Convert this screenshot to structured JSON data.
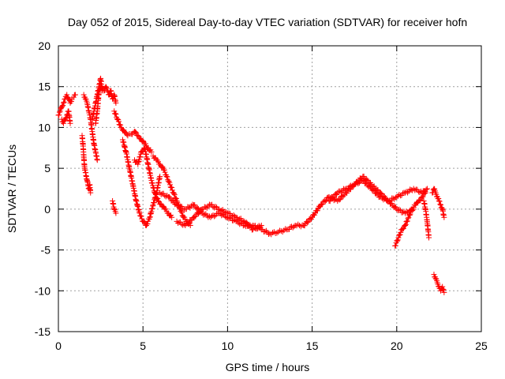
{
  "chart_data": {
    "type": "scatter",
    "title": "Day 052 of 2015, Sidereal Day-to-day VTEC variation (SDTVAR) for receiver hofn",
    "xlabel": "GPS time / hours",
    "ylabel": "SDTVAR / TECUs",
    "xlim": [
      0,
      25
    ],
    "ylim": [
      -15,
      20
    ],
    "xticks": [
      0,
      5,
      10,
      15,
      20,
      25
    ],
    "yticks": [
      -15,
      -10,
      -5,
      0,
      5,
      10,
      15,
      20
    ],
    "grid": true,
    "marker": "+",
    "color": "#ff0000",
    "series": [
      {
        "name": "SDTVAR",
        "segments": [
          {
            "x": [
              0.0,
              0.1,
              0.2,
              0.3,
              0.4,
              0.5,
              0.6,
              0.7,
              0.8,
              0.9,
              1.0
            ],
            "y": [
              11.5,
              12.0,
              12.5,
              13.0,
              13.5,
              14.0,
              13.5,
              13.0,
              13.5,
              13.7,
              14.0
            ]
          },
          {
            "x": [
              0.2,
              0.3,
              0.4,
              0.5,
              0.6,
              0.7
            ],
            "y": [
              11.0,
              10.5,
              11.0,
              11.5,
              12.0,
              10.5
            ]
          },
          {
            "x": [
              1.4,
              1.45,
              1.5,
              1.55,
              1.6,
              1.65,
              1.7,
              1.75,
              1.8,
              1.85,
              1.9
            ],
            "y": [
              9.0,
              8.0,
              6.5,
              5.0,
              4.5,
              4.0,
              3.5,
              3.0,
              2.5,
              3.0,
              2.0
            ]
          },
          {
            "x": [
              1.5,
              1.6,
              1.7,
              1.8,
              1.9,
              2.0,
              2.1,
              2.2,
              2.3
            ],
            "y": [
              14.0,
              13.5,
              13.0,
              12.0,
              11.0,
              9.5,
              8.0,
              7.0,
              6.0
            ]
          },
          {
            "x": [
              2.0,
              2.1,
              2.2,
              2.3,
              2.4,
              2.5,
              2.6
            ],
            "y": [
              11.0,
              12.0,
              13.0,
              14.0,
              15.0,
              16.0,
              14.5
            ]
          },
          {
            "x": [
              2.2,
              2.3,
              2.4,
              2.5,
              2.6,
              2.7,
              2.8,
              2.9,
              3.0,
              3.1,
              3.2,
              3.3,
              3.4
            ],
            "y": [
              10.5,
              12.0,
              14.5,
              15.0,
              14.8,
              14.5,
              15.0,
              14.5,
              14.0,
              14.5,
              13.5,
              14.0,
              13.0
            ]
          },
          {
            "x": [
              3.2,
              3.3,
              3.4
            ],
            "y": [
              1.0,
              0.0,
              -0.5
            ]
          },
          {
            "x": [
              3.3,
              3.5,
              3.7,
              3.9,
              4.1,
              4.3,
              4.5,
              4.7,
              4.9,
              5.1,
              5.3,
              5.5
            ],
            "y": [
              12.0,
              11.0,
              10.0,
              9.5,
              9.0,
              9.2,
              9.5,
              9.0,
              8.5,
              8.0,
              7.5,
              7.0
            ]
          },
          {
            "x": [
              3.8,
              4.0,
              4.2,
              4.4,
              4.6,
              4.8,
              5.0,
              5.2,
              5.4,
              5.6,
              5.8,
              6.0
            ],
            "y": [
              8.5,
              7.0,
              5.0,
              3.0,
              1.0,
              -0.5,
              -1.5,
              -2.0,
              -1.0,
              0.5,
              2.0,
              4.0
            ]
          },
          {
            "x": [
              4.5,
              4.7,
              4.9,
              5.1,
              5.3,
              5.5,
              5.7,
              5.9,
              6.1,
              6.3,
              6.5,
              6.7
            ],
            "y": [
              6.0,
              5.5,
              7.0,
              7.5,
              5.5,
              3.5,
              2.0,
              1.0,
              0.5,
              0.0,
              -0.5,
              -1.0
            ]
          },
          {
            "x": [
              5.6,
              5.8,
              6.0,
              6.2,
              6.4,
              6.6,
              6.8,
              7.0,
              7.2,
              7.4,
              7.6,
              7.8
            ],
            "y": [
              6.5,
              6.0,
              5.5,
              5.0,
              4.0,
              3.0,
              2.0,
              1.0,
              0.0,
              -1.0,
              -1.5,
              -2.0
            ]
          },
          {
            "x": [
              6.0,
              6.5,
              7.0,
              7.5,
              8.0,
              8.5,
              9.0,
              9.5,
              10.0,
              10.5,
              11.0,
              11.5,
              12.0,
              12.5,
              13.0,
              13.5,
              14.0,
              14.5
            ],
            "y": [
              2.0,
              1.5,
              0.5,
              0.0,
              0.5,
              -0.5,
              -1.0,
              -0.5,
              -1.0,
              -1.5,
              -2.0,
              -2.0,
              -2.5,
              -3.0,
              -2.8,
              -2.5,
              -2.0,
              -2.0
            ]
          },
          {
            "x": [
              7.0,
              7.5,
              8.0,
              8.5,
              9.0,
              9.5,
              10.0,
              10.5,
              11.0,
              11.5,
              12.0
            ],
            "y": [
              -1.5,
              -2.0,
              -1.0,
              0.0,
              0.5,
              0.0,
              -0.5,
              -1.0,
              -1.5,
              -2.5,
              -2.0
            ]
          },
          {
            "x": [
              14.5,
              15.0,
              15.5,
              16.0,
              16.5,
              17.0,
              17.5,
              18.0,
              18.5,
              19.0,
              19.5,
              20.0,
              20.5,
              21.0,
              21.5,
              21.8
            ],
            "y": [
              -2.0,
              -1.0,
              0.5,
              1.5,
              1.0,
              2.0,
              3.0,
              3.5,
              2.5,
              1.5,
              1.0,
              1.5,
              2.0,
              2.5,
              2.0,
              2.5
            ]
          },
          {
            "x": [
              16.0,
              16.5,
              17.0,
              17.5,
              18.0,
              18.5,
              19.0,
              19.5,
              20.0,
              20.5,
              21.0
            ],
            "y": [
              1.0,
              2.0,
              2.5,
              3.0,
              4.0,
              3.0,
              2.0,
              1.0,
              0.0,
              -0.5,
              0.0
            ]
          },
          {
            "x": [
              19.9,
              20.1,
              20.3,
              20.5,
              20.7,
              20.9,
              21.1,
              21.3,
              21.5,
              21.7
            ],
            "y": [
              -4.5,
              -3.5,
              -2.5,
              -2.0,
              -1.0,
              0.0,
              0.5,
              1.0,
              1.5,
              2.0
            ]
          },
          {
            "x": [
              21.6,
              21.7,
              21.8,
              21.9
            ],
            "y": [
              1.0,
              0.0,
              -1.5,
              -3.5
            ]
          },
          {
            "x": [
              22.1,
              22.2,
              22.3,
              22.4,
              22.5,
              22.6,
              22.7,
              22.8
            ],
            "y": [
              2.0,
              2.5,
              2.0,
              1.5,
              1.0,
              0.5,
              0.0,
              -1.0
            ]
          },
          {
            "x": [
              22.2,
              22.3,
              22.4,
              22.5,
              22.6,
              22.7,
              22.8
            ],
            "y": [
              -8.0,
              -8.5,
              -9.0,
              -9.5,
              -10.0,
              -9.5,
              -10.2
            ]
          }
        ]
      }
    ]
  }
}
